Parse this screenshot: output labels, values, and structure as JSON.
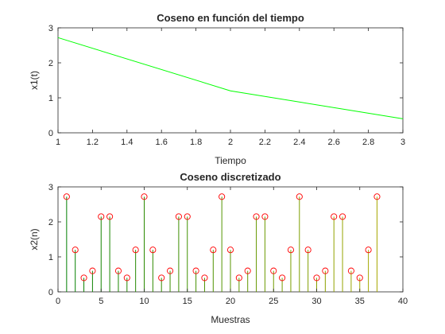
{
  "chart_data": [
    {
      "type": "line",
      "title": "Coseno en función del tiempo",
      "xlabel": "Tiempo",
      "ylabel": "x1(t)",
      "x": [
        1,
        2,
        3
      ],
      "series": [
        {
          "values": [
            2.72,
            1.2,
            0.4
          ],
          "color": "#00ff00"
        }
      ],
      "xlim": [
        1,
        3
      ],
      "ylim": [
        0,
        3
      ],
      "xticks": [
        "1",
        "1.2",
        "1.4",
        "1.6",
        "1.8",
        "2",
        "2.2",
        "2.4",
        "2.6",
        "2.8",
        "3"
      ],
      "xtick_values": [
        1,
        1.2,
        1.4,
        1.6,
        1.8,
        2,
        2.2,
        2.4,
        2.6,
        2.8,
        3
      ],
      "yticks": [
        "0",
        "1",
        "2",
        "3"
      ],
      "ytick_values": [
        0,
        1,
        2,
        3
      ],
      "grid": false
    },
    {
      "type": "stem",
      "title": "Coseno discretizado",
      "xlabel": "Muestras",
      "ylabel": "x2(n)",
      "x": [
        1,
        2,
        3,
        4,
        5,
        6,
        7,
        8,
        9,
        10,
        11,
        12,
        13,
        14,
        15,
        16,
        17,
        18,
        19,
        20,
        21,
        22,
        23,
        24,
        25,
        26,
        27,
        28,
        29,
        30,
        31,
        32,
        33,
        34,
        35,
        36,
        37
      ],
      "series": [
        {
          "values": [
            2.72,
            1.2,
            0.4,
            0.6,
            2.15,
            2.15,
            0.6,
            0.4,
            1.2,
            2.72,
            1.2,
            0.4,
            0.6,
            2.15,
            2.15,
            0.6,
            0.4,
            1.2,
            2.72,
            1.2,
            0.4,
            0.6,
            2.15,
            2.15,
            0.6,
            0.4,
            1.2,
            2.72,
            1.2,
            0.4,
            0.6,
            2.15,
            2.15,
            0.6,
            0.4,
            1.2,
            2.72
          ],
          "stem_color_start": "#008000",
          "stem_color_end": "#a8a800",
          "marker": "circle",
          "marker_color": "#ff0000"
        }
      ],
      "xlim": [
        0,
        40
      ],
      "ylim": [
        0,
        3
      ],
      "xticks": [
        "0",
        "5",
        "10",
        "15",
        "20",
        "25",
        "30",
        "35",
        "40"
      ],
      "xtick_values": [
        0,
        5,
        10,
        15,
        20,
        25,
        30,
        35,
        40
      ],
      "yticks": [
        "0",
        "1",
        "2",
        "3"
      ],
      "ytick_values": [
        0,
        1,
        2,
        3
      ],
      "grid": false
    }
  ]
}
